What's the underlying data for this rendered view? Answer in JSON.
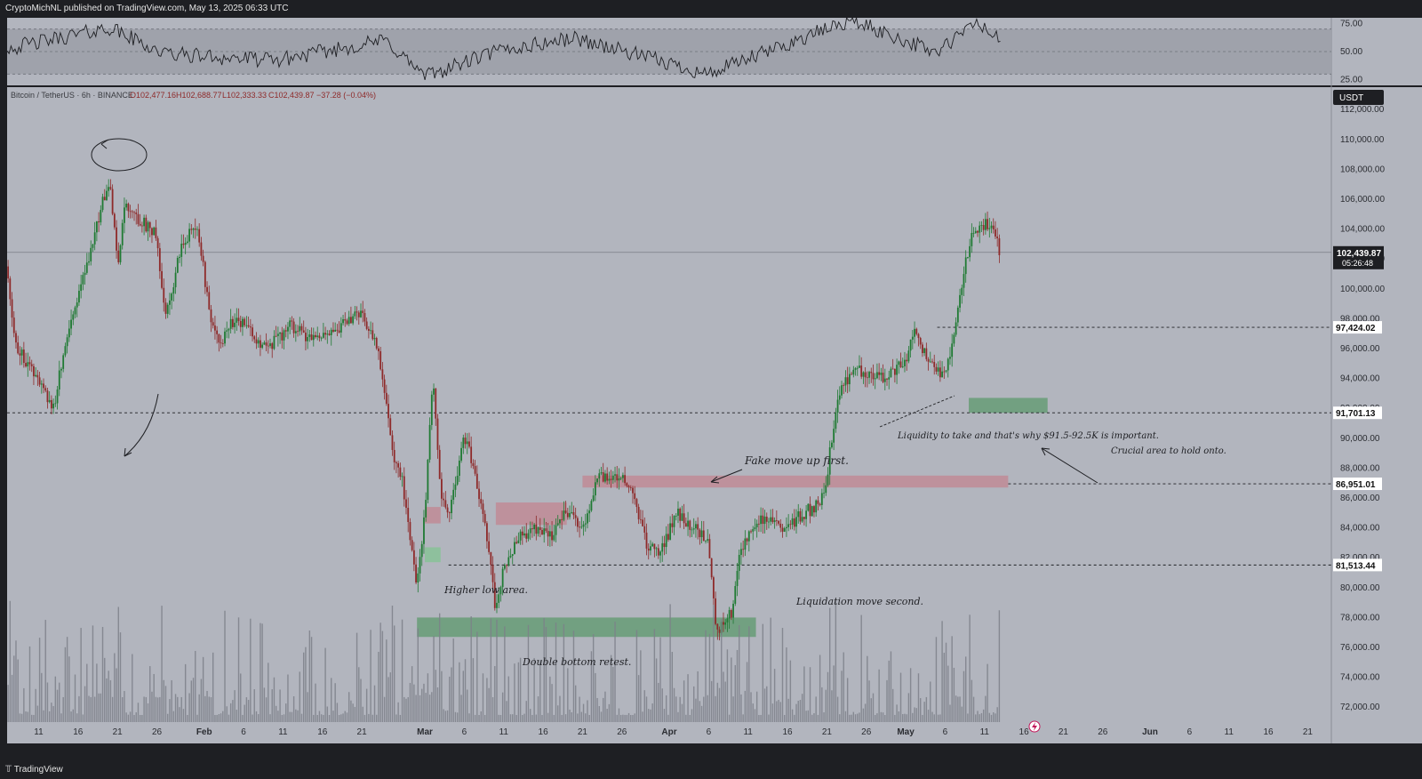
{
  "header": {
    "publisher": "CryptoMichNL published on TradingView.com, May 13, 2025 06:33 UTC"
  },
  "footer": {
    "brand": "TradingView",
    "logo_glyph": "𝕋"
  },
  "colors": {
    "background": "#b2b5be",
    "up": "#1f7a33",
    "down": "#8e2a2a",
    "green_zone": "#5c9a6c",
    "red_zone": "#c77a86"
  },
  "symbol_info": {
    "name": "Bitcoin / TetherUS · 6h · BINANCE",
    "open": "O102,477.16",
    "high": "H102,688.77",
    "low": "L102,333.33",
    "close": "C102,439.87",
    "change": "−37.28 (−0.04%)"
  },
  "chart_data": [
    {
      "type": "line",
      "panel": "oscillator",
      "ylim": [
        20,
        80
      ],
      "yticks": [
        "75.00",
        "50.00",
        "25.00"
      ],
      "band": [
        30,
        70
      ],
      "series": [
        {
          "x_date": [
            "2025-01-08",
            "2025-01-20",
            "2025-01-27",
            "2025-02-10",
            "2025-02-24",
            "2025-03-01",
            "2025-03-10",
            "2025-03-20",
            "2025-04-06",
            "2025-04-24",
            "2025-05-05",
            "2025-05-10",
            "2025-05-13"
          ],
          "values": [
            54,
            71,
            48,
            42,
            60,
            28,
            50,
            62,
            30,
            78,
            49,
            76,
            59
          ]
        }
      ]
    },
    {
      "type": "candlestick",
      "panel": "price",
      "currency": "USDT",
      "ylim": [
        71000,
        113500
      ],
      "yticks": [
        "112,000.00",
        "110,000.00",
        "108,000.00",
        "106,000.00",
        "104,000.00",
        "102,000.00",
        "100,000.00",
        "98,000.00",
        "96,000.00",
        "94,000.00",
        "92,000.00",
        "90,000.00",
        "88,000.00",
        "86,000.00",
        "84,000.00",
        "82,000.00",
        "80,000.00",
        "78,000.00",
        "76,000.00",
        "74,000.00",
        "72,000.00"
      ],
      "xticks": [
        {
          "label": "11",
          "date": "2025-01-11"
        },
        {
          "label": "16",
          "date": "2025-01-16"
        },
        {
          "label": "21",
          "date": "2025-01-21"
        },
        {
          "label": "26",
          "date": "2025-01-26"
        },
        {
          "label": "Feb",
          "date": "2025-02-01"
        },
        {
          "label": "6",
          "date": "2025-02-06"
        },
        {
          "label": "11",
          "date": "2025-02-11"
        },
        {
          "label": "16",
          "date": "2025-02-16"
        },
        {
          "label": "21",
          "date": "2025-02-21"
        },
        {
          "label": "Mar",
          "date": "2025-03-01"
        },
        {
          "label": "6",
          "date": "2025-03-06"
        },
        {
          "label": "11",
          "date": "2025-03-11"
        },
        {
          "label": "16",
          "date": "2025-03-16"
        },
        {
          "label": "21",
          "date": "2025-03-21"
        },
        {
          "label": "26",
          "date": "2025-03-26"
        },
        {
          "label": "Apr",
          "date": "2025-04-01"
        },
        {
          "label": "6",
          "date": "2025-04-06"
        },
        {
          "label": "11",
          "date": "2025-04-11"
        },
        {
          "label": "16",
          "date": "2025-04-16"
        },
        {
          "label": "21",
          "date": "2025-04-21"
        },
        {
          "label": "26",
          "date": "2025-04-26"
        },
        {
          "label": "May",
          "date": "2025-05-01"
        },
        {
          "label": "6",
          "date": "2025-05-06"
        },
        {
          "label": "11",
          "date": "2025-05-11"
        },
        {
          "label": "16",
          "date": "2025-05-16"
        },
        {
          "label": "21",
          "date": "2025-05-21"
        },
        {
          "label": "26",
          "date": "2025-05-26"
        },
        {
          "label": "Jun",
          "date": "2025-06-01"
        },
        {
          "label": "6",
          "date": "2025-06-06"
        },
        {
          "label": "11",
          "date": "2025-06-11"
        },
        {
          "label": "16",
          "date": "2025-06-16"
        },
        {
          "label": "21",
          "date": "2025-06-21"
        }
      ],
      "x_start": "2025-01-07",
      "x_end": "2025-06-24",
      "price_path": [
        [
          "2025-01-07",
          101500
        ],
        [
          "2025-01-08",
          96500
        ],
        [
          "2025-01-10",
          94500
        ],
        [
          "2025-01-13",
          92000
        ],
        [
          "2025-01-14",
          95500
        ],
        [
          "2025-01-16",
          99500
        ],
        [
          "2025-01-18",
          103500
        ],
        [
          "2025-01-20",
          107500
        ],
        [
          "2025-01-21",
          101500
        ],
        [
          "2025-01-22",
          105500
        ],
        [
          "2025-01-24",
          104500
        ],
        [
          "2025-01-26",
          103500
        ],
        [
          "2025-01-27",
          98000
        ],
        [
          "2025-01-29",
          102500
        ],
        [
          "2025-01-31",
          104500
        ],
        [
          "2025-02-02",
          97500
        ],
        [
          "2025-02-03",
          96500
        ],
        [
          "2025-02-05",
          98000
        ],
        [
          "2025-02-07",
          97000
        ],
        [
          "2025-02-09",
          96000
        ],
        [
          "2025-02-12",
          97500
        ],
        [
          "2025-02-15",
          96500
        ],
        [
          "2025-02-17",
          97000
        ],
        [
          "2025-02-20",
          98000
        ],
        [
          "2025-02-21",
          98500
        ],
        [
          "2025-02-23",
          96000
        ],
        [
          "2025-02-25",
          89000
        ],
        [
          "2025-02-26",
          87500
        ],
        [
          "2025-02-27",
          84000
        ],
        [
          "2025-02-28",
          80000
        ],
        [
          "2025-03-01",
          85000
        ],
        [
          "2025-03-02",
          94500
        ],
        [
          "2025-03-03",
          86500
        ],
        [
          "2025-03-04",
          85000
        ],
        [
          "2025-03-06",
          90000
        ],
        [
          "2025-03-07",
          88500
        ],
        [
          "2025-03-09",
          83000
        ],
        [
          "2025-03-10",
          78500
        ],
        [
          "2025-03-11",
          81500
        ],
        [
          "2025-03-13",
          83500
        ],
        [
          "2025-03-15",
          84000
        ],
        [
          "2025-03-17",
          83500
        ],
        [
          "2025-03-19",
          85000
        ],
        [
          "2025-03-21",
          84000
        ],
        [
          "2025-03-23",
          87500
        ],
        [
          "2025-03-25",
          87500
        ],
        [
          "2025-03-27",
          87000
        ],
        [
          "2025-03-29",
          83000
        ],
        [
          "2025-03-31",
          82500
        ],
        [
          "2025-04-02",
          85000
        ],
        [
          "2025-04-04",
          84000
        ],
        [
          "2025-04-06",
          83000
        ],
        [
          "2025-04-07",
          77000
        ],
        [
          "2025-04-09",
          78500
        ],
        [
          "2025-04-10",
          82500
        ],
        [
          "2025-04-12",
          84500
        ],
        [
          "2025-04-14",
          84500
        ],
        [
          "2025-04-16",
          84000
        ],
        [
          "2025-04-18",
          85000
        ],
        [
          "2025-04-20",
          85500
        ],
        [
          "2025-04-21",
          87500
        ],
        [
          "2025-04-22",
          91500
        ],
        [
          "2025-04-23",
          93500
        ],
        [
          "2025-04-25",
          94500
        ],
        [
          "2025-04-28",
          94000
        ],
        [
          "2025-05-01",
          95000
        ],
        [
          "2025-05-02",
          97000
        ],
        [
          "2025-05-04",
          95000
        ],
        [
          "2025-05-06",
          94000
        ],
        [
          "2025-05-08",
          99500
        ],
        [
          "2025-05-09",
          103000
        ],
        [
          "2025-05-10",
          104000
        ],
        [
          "2025-05-11",
          104200
        ],
        [
          "2025-05-12",
          104500
        ],
        [
          "2025-05-13",
          102440
        ]
      ],
      "volume_scale": [
        0,
        1
      ]
    }
  ],
  "price_tag": {
    "value": "102,439.87",
    "countdown": "05:26:48",
    "value_num": 102439.87
  },
  "levels": [
    {
      "label": "97,424.02",
      "value": 97424.02
    },
    {
      "label": "91,701.13",
      "value": 91701.13
    },
    {
      "label": "86,951.01",
      "value": 86951.01
    },
    {
      "label": "81,513.44",
      "value": 81513.44
    }
  ],
  "annotations": {
    "fake_move": "Fake move up first.",
    "liquidity": "Liquidity to take and that's why $91.5-92.5K is important.",
    "crucial": "Crucial area to hold onto.",
    "higher_low": "Higher low area.",
    "liquidation": "Liquidation move second.",
    "double_bottom": "Double bottom retest."
  }
}
